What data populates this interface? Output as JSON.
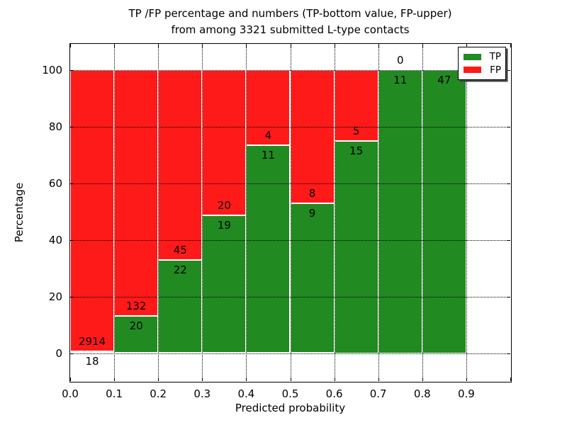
{
  "figure": {
    "title_lines": [
      "TP /FP percentage and numbers (TP-bottom value, FP-upper)",
      "from among 3321 submitted L-type contacts"
    ]
  },
  "chart_data": {
    "type": "bar",
    "stacked": true,
    "units": "percent of bin, normalized to 100",
    "title": "TP /FP percentage and numbers (TP-bottom value, FP-upper) from among 3321 submitted L-type contacts",
    "xlabel": "Predicted probability",
    "ylabel": "Percentage",
    "xlim": [
      0.0,
      1.0
    ],
    "ylim": [
      -10,
      110
    ],
    "bin_width": 0.1,
    "x_tick_labels": [
      "0.0",
      "0.1",
      "0.2",
      "0.3",
      "0.4",
      "0.5",
      "0.6",
      "0.7",
      "0.8",
      "0.9"
    ],
    "y_ticks": [
      0,
      20,
      40,
      60,
      80,
      100
    ],
    "grid": true,
    "total_contacts": 3321,
    "colors": {
      "tp": "#218a21",
      "fp": "#ff1a1a",
      "bar_edge": "#ffffff"
    },
    "legend": {
      "position": "upper right",
      "entries": [
        {
          "label": "TP",
          "color": "#218a21"
        },
        {
          "label": "FP",
          "color": "#ff1a1a"
        }
      ]
    },
    "bins": [
      {
        "x_start": 0.0,
        "x_end": 0.1,
        "tp": 18,
        "fp": 2914
      },
      {
        "x_start": 0.1,
        "x_end": 0.2,
        "tp": 20,
        "fp": 132
      },
      {
        "x_start": 0.2,
        "x_end": 0.3,
        "tp": 22,
        "fp": 45
      },
      {
        "x_start": 0.3,
        "x_end": 0.4,
        "tp": 19,
        "fp": 20
      },
      {
        "x_start": 0.4,
        "x_end": 0.5,
        "tp": 11,
        "fp": 4
      },
      {
        "x_start": 0.5,
        "x_end": 0.6,
        "tp": 9,
        "fp": 8
      },
      {
        "x_start": 0.6,
        "x_end": 0.7,
        "tp": 15,
        "fp": 5
      },
      {
        "x_start": 0.7,
        "x_end": 0.8,
        "tp": 11,
        "fp": 0
      },
      {
        "x_start": 0.8,
        "x_end": 0.9,
        "tp": 47,
        "fp": 0,
        "fp_label_hidden": true
      }
    ]
  }
}
